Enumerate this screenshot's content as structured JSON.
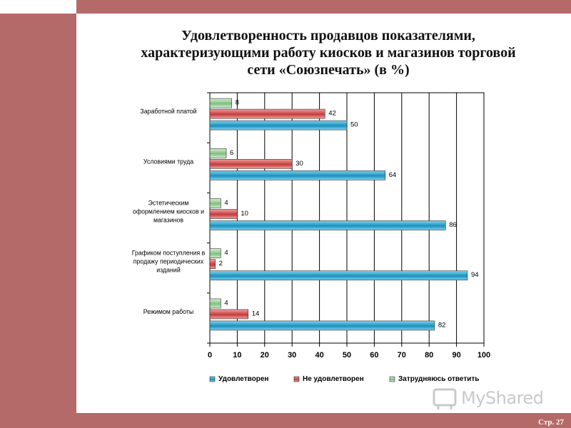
{
  "slide": {
    "title_lines": [
      "Удовлетворенность продавцов показателями,",
      "характеризующими работу киосков и магазинов торговой",
      "сети «Союзпечать» (в %)"
    ],
    "page_number": "Стр. 27",
    "watermark": "MyShared"
  },
  "chart_data": {
    "type": "bar",
    "orientation": "horizontal",
    "categories": [
      [
        "Заработной платой"
      ],
      [
        "Условиями труда"
      ],
      [
        "Эстетическим",
        "оформлением киосков и",
        "магазинов"
      ],
      [
        "Графиком поступления в",
        "продажу периодических",
        "изданий"
      ],
      [
        "Режимом работы"
      ]
    ],
    "series": [
      {
        "name": "Удовлетворен",
        "color": "#1fa0c8",
        "values": [
          50,
          64,
          86,
          94,
          82
        ]
      },
      {
        "name": "Не удовлетворен",
        "color": "#cc4a4a",
        "values": [
          42,
          30,
          10,
          2,
          14
        ]
      },
      {
        "name": "Затрудняюсь ответить",
        "color": "#8fc98f",
        "values": [
          8,
          6,
          4,
          4,
          4
        ]
      }
    ],
    "xlim": [
      0,
      100
    ],
    "xticks": [
      0,
      10,
      20,
      30,
      40,
      50,
      60,
      70,
      80,
      90,
      100
    ],
    "grid": true,
    "legend": "bottom"
  }
}
